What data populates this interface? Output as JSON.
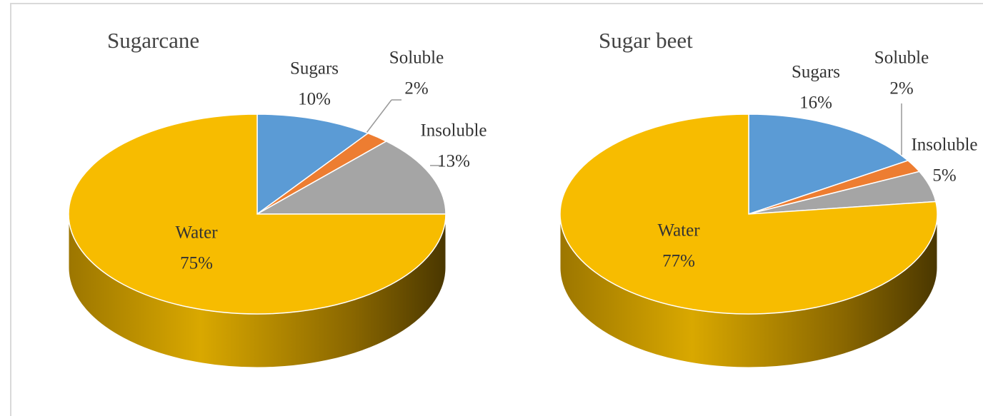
{
  "chart_data": [
    {
      "type": "pie",
      "title": "Sugarcane",
      "categories": [
        "Sugars",
        "Soluble",
        "Insoluble",
        "Water"
      ],
      "values": [
        10,
        2,
        13,
        75
      ],
      "value_labels": [
        "10%",
        "2%",
        "13%",
        "75%"
      ],
      "colors": [
        "#5b9bd5",
        "#ed7d31",
        "#a5a5a5",
        "#f7bc00"
      ]
    },
    {
      "type": "pie",
      "title": "Sugar beet",
      "categories": [
        "Sugars",
        "Soluble",
        "Insoluble",
        "Water"
      ],
      "values": [
        16,
        2,
        5,
        77
      ],
      "value_labels": [
        "16%",
        "2%",
        "5%",
        "77%"
      ],
      "colors": [
        "#5b9bd5",
        "#ed7d31",
        "#a5a5a5",
        "#f7bc00"
      ]
    }
  ]
}
